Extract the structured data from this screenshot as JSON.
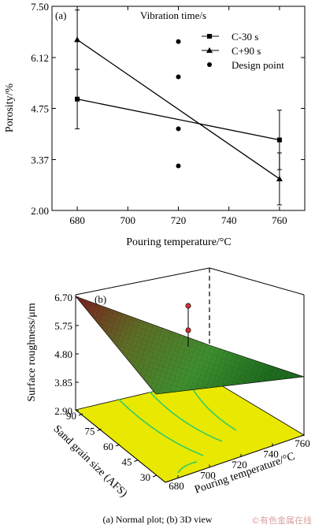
{
  "caption": "(a) Normal plot; (b) 3D view",
  "watermark": "©有色金属在线",
  "chart_data": [
    {
      "panel": "(a)",
      "type": "line",
      "xlabel": "Pouring temperature/°C",
      "ylabel": "Porosity/%",
      "xlim": [
        670,
        770
      ],
      "ylim": [
        2.0,
        7.5
      ],
      "xticks": [
        "680",
        "700",
        "720",
        "740",
        "760"
      ],
      "yticks": [
        "2.00",
        "3.37",
        "4.75",
        "6.12",
        "7.50"
      ],
      "legend_title": "Vibration time/s",
      "legend_position": "top-right",
      "series": [
        {
          "name": "C-30 s",
          "marker": "square",
          "points": [
            {
              "x": 680,
              "y": 5.0,
              "err": 0.8
            },
            {
              "x": 760,
              "y": 3.9,
              "err": 0.8
            }
          ]
        },
        {
          "name": "C+90 s",
          "marker": "triangle",
          "points": [
            {
              "x": 680,
              "y": 6.6,
              "err": 0.8
            },
            {
              "x": 760,
              "y": 2.85,
              "err": 0.7
            }
          ]
        },
        {
          "name": "Design point",
          "marker": "circle",
          "points": [
            {
              "x": 720,
              "y": 6.55
            },
            {
              "x": 720,
              "y": 5.6
            },
            {
              "x": 720,
              "y": 4.2
            },
            {
              "x": 720,
              "y": 3.2
            }
          ]
        }
      ]
    },
    {
      "panel": "(b)",
      "type": "surface",
      "zlabel": "Surface roughness/μm",
      "zticks": [
        "6.70",
        "5.75",
        "4.80",
        "3.85",
        "2.90"
      ],
      "ylabel": "Sand grain size (AFS)",
      "yticks": [
        "90",
        "75",
        "60",
        "45",
        "30"
      ],
      "xlabel": "Pouring temperature/°C",
      "xticks": [
        "680",
        "700",
        "720",
        "740",
        "760"
      ],
      "surface_colors": {
        "high": "#7a1f1f",
        "mid": "#4a8a2a",
        "low": "#1f6b1f",
        "contour_plane": "#e8e800",
        "contour_lines": "#33cc66"
      }
    }
  ]
}
